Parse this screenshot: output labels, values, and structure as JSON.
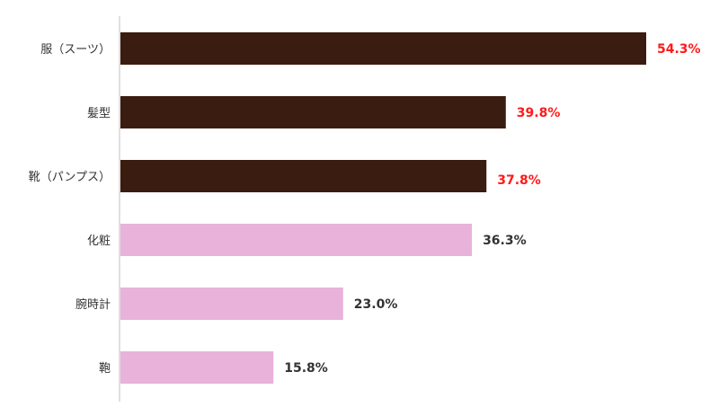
{
  "chart_data": {
    "type": "bar",
    "orientation": "horizontal",
    "categories": [
      "服（スーツ）",
      "髪型",
      "靴（パンプス）",
      "化粧",
      "腕時計",
      "鞄"
    ],
    "values": [
      54.3,
      39.8,
      37.8,
      36.3,
      23.0,
      15.8
    ],
    "value_labels": [
      "54.3%",
      "39.8%",
      "37.8%",
      "36.3%",
      "23.0%",
      "15.8%"
    ],
    "bar_colors": [
      "#3a1c10",
      "#3a1c10",
      "#3a1c10",
      "#e8b2da",
      "#e8b2da",
      "#e8b2da"
    ],
    "label_colors": [
      "#ff1a1a",
      "#ff1a1a",
      "#ff1a1a",
      "#333333",
      "#333333",
      "#333333"
    ],
    "emphasized_index": 2,
    "xlim": [
      0,
      60
    ],
    "grid": false,
    "title": "",
    "xlabel": "",
    "ylabel": ""
  }
}
